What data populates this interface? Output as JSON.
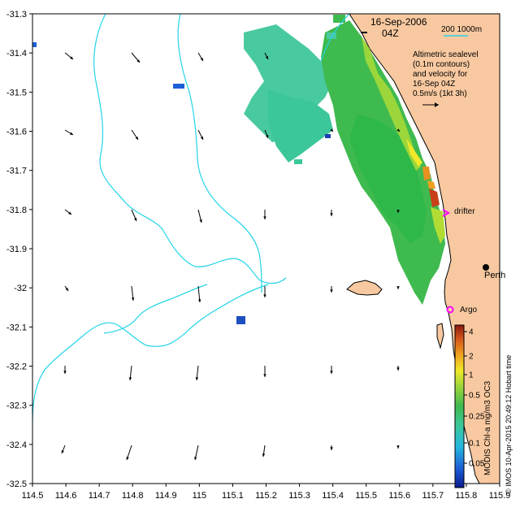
{
  "header": {
    "date": "16-Sep-2006",
    "time": "04Z",
    "scale_label": "200  1000m"
  },
  "legend": {
    "line1": "Altimetric sealevel",
    "line2": "(0.1m contours)",
    "line3": "and velocity for",
    "line4": "16-Sep 04Z",
    "line5": "0.5m/s (1kt 3h)"
  },
  "labels": {
    "drifter": "drifter",
    "perth": "Perth",
    "argo": "Argo"
  },
  "colorbar": {
    "title": "MODIS Chl-a mg/m3 OC3",
    "ticks": [
      "4",
      "2",
      "1",
      "0.5",
      "0.25",
      "0.1",
      "0.05"
    ]
  },
  "credit": "© IMOS 10-Apr-2015 20:49:12 Hobart time",
  "axes": {
    "x_ticks": [
      "114.5",
      "114.6",
      "114.7",
      "114.8",
      "114.9",
      "115",
      "115.1",
      "115.2",
      "115.3",
      "115.4",
      "115.5",
      "115.6",
      "115.7",
      "115.8",
      "115.9"
    ],
    "y_ticks": [
      "-31.3",
      "-31.4",
      "-31.5",
      "-31.6",
      "-31.7",
      "-31.8",
      "-31.9",
      "-32",
      "-32.1",
      "-32.2",
      "-32.3",
      "-32.4",
      "-32.5"
    ]
  },
  "colors": {
    "land": "#f8c9a0",
    "contour": "#22d4e8",
    "drifter": "#ff00ff",
    "argo": "#ff00ff",
    "chl_green": "#3fba4f",
    "chl_teal": "#49c9a0"
  },
  "chart_data": {
    "type": "map",
    "xlim": [
      114.5,
      115.9
    ],
    "ylim": [
      -32.5,
      -31.3
    ],
    "x_unit": "longitude",
    "y_unit": "latitude"
  }
}
